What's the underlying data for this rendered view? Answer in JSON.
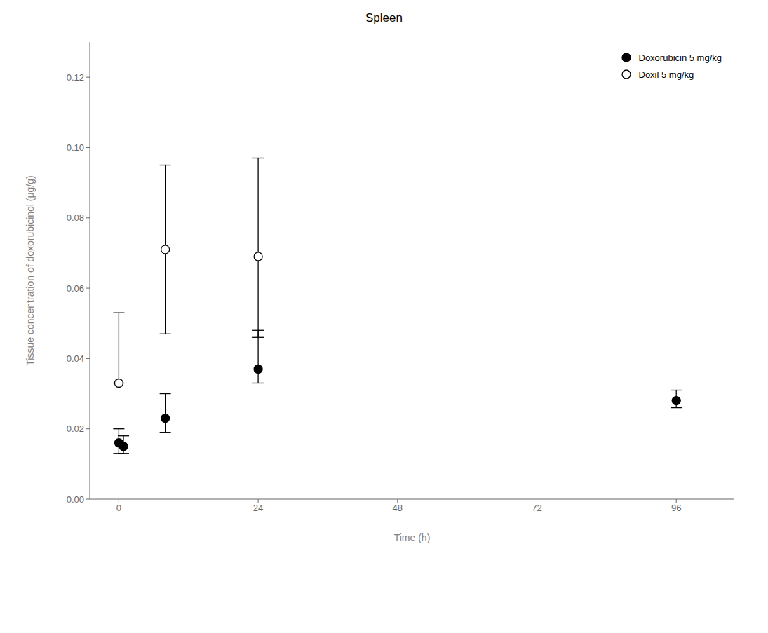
{
  "chart_data": {
    "type": "scatter",
    "title": "Spleen",
    "xlabel": "Time (h)",
    "ylabel": "Tissue concentration of doxorubicinol (μg/g)",
    "xlim": [
      -5,
      106
    ],
    "ylim": [
      0,
      0.13
    ],
    "xticks": [
      0,
      24,
      48,
      72,
      96
    ],
    "yticks": [
      {
        "value": 0.0,
        "label": "0.00"
      },
      0.02,
      0.04,
      0.06,
      0.08,
      {
        "value": 0.1,
        "label": "0.10"
      },
      0.12
    ],
    "grid": false,
    "legend": "upper right",
    "series": [
      {
        "name": "Doxorubicin 5 mg/kg",
        "color": "black",
        "marker": "circle",
        "x": [
          0,
          0.8,
          8,
          24,
          96
        ],
        "values": [
          0.016,
          0.015,
          0.023,
          0.037,
          0.028
        ],
        "yerr_low": [
          0.003,
          0.002,
          0.004,
          0.004,
          0.002
        ],
        "yerr_high": [
          0.004,
          0.003,
          0.007,
          0.011,
          0.003
        ]
      },
      {
        "name": "Doxil 5 mg/kg",
        "color": "black",
        "marker": "open_circle",
        "x": [
          0,
          8,
          24
        ],
        "values": [
          0.033,
          0.071,
          0.069
        ],
        "yerr_low": [
          0.0,
          0.024,
          0.023
        ],
        "yerr_high": [
          0.02,
          0.024,
          0.028
        ]
      }
    ]
  }
}
